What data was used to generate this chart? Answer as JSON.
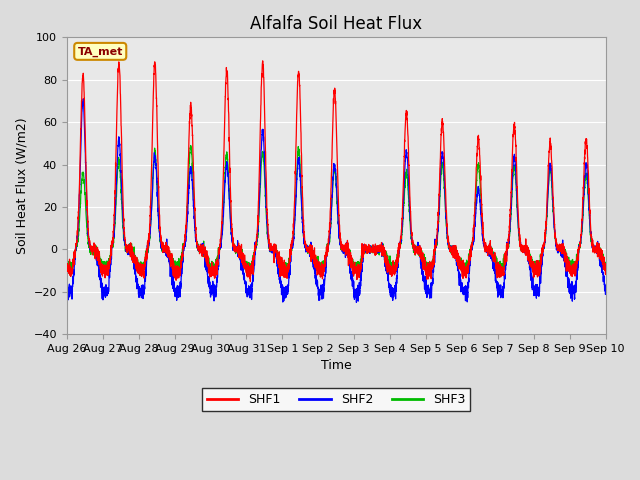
{
  "title": "Alfalfa Soil Heat Flux",
  "xlabel": "Time",
  "ylabel": "Soil Heat Flux (W/m2)",
  "ylim": [
    -40,
    100
  ],
  "yticks": [
    -40,
    -20,
    0,
    20,
    40,
    60,
    80,
    100
  ],
  "line_colors": {
    "SHF1": "#FF0000",
    "SHF2": "#0000FF",
    "SHF3": "#00BB00"
  },
  "legend_label": "TA_met",
  "background_color": "#DCDCDC",
  "plot_bg_color": "#E8E8E8",
  "days": [
    "Aug 26",
    "Aug 27",
    "Aug 28",
    "Aug 29",
    "Aug 30",
    "Aug 31",
    "Sep 1",
    "Sep 2",
    "Sep 3",
    "Sep 4",
    "Sep 5",
    "Sep 6",
    "Sep 7",
    "Sep 8",
    "Sep 9",
    "Sep 10"
  ],
  "shf1_peaks": [
    82,
    88,
    88,
    67,
    84,
    88,
    84,
    75,
    0,
    64,
    60,
    52,
    59,
    50,
    52
  ],
  "shf2_peaks": [
    70,
    52,
    44,
    38,
    40,
    56,
    42,
    40,
    0,
    46,
    46,
    28,
    44,
    40,
    40
  ],
  "shf3_peaks": [
    36,
    42,
    46,
    49,
    45,
    46,
    47,
    38,
    0,
    36,
    40,
    40,
    39,
    38,
    35
  ],
  "shf1_trough": -10,
  "shf2_trough": -20,
  "shf3_trough": -8,
  "title_fontsize": 12,
  "axis_label_fontsize": 9,
  "tick_fontsize": 8
}
